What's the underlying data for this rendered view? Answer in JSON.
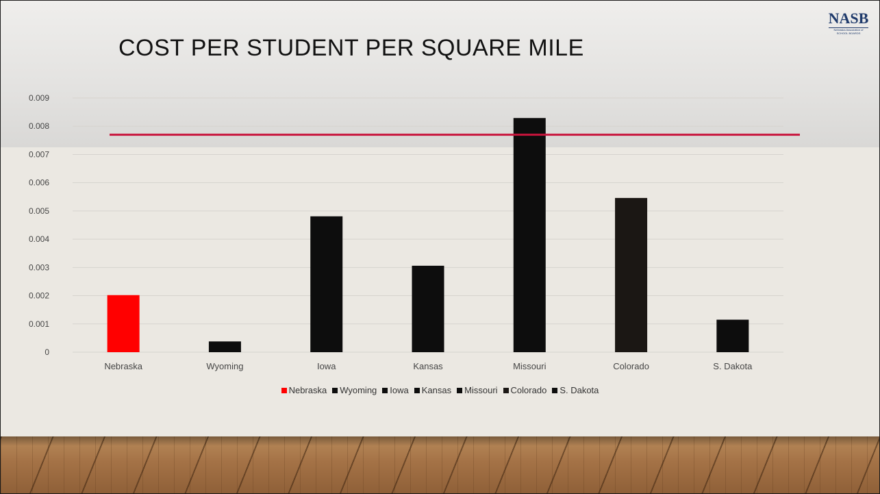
{
  "slide": {
    "title": "COST PER STUDENT PER SQUARE MILE",
    "logo": {
      "text": "NASB",
      "subtitle_line1": "Nebraska Association of",
      "subtitle_line2": "SCHOOL BOARDS"
    }
  },
  "colors": {
    "highlight": "#ff0000",
    "bar": "#0d0d0d",
    "colorado_bar": "#1b1714",
    "reference_line": "#c8143c",
    "logo": "#1f3a6b"
  },
  "chart_data": {
    "type": "bar",
    "categories": [
      "Nebraska",
      "Wyoming",
      "Iowa",
      "Kansas",
      "Missouri",
      "Colorado",
      "S. Dakota"
    ],
    "values": [
      0.00202,
      0.00038,
      0.00481,
      0.00306,
      0.00829,
      0.00546,
      0.00115
    ],
    "bar_colors": [
      "#ff0000",
      "#0d0d0d",
      "#0d0d0d",
      "#0d0d0d",
      "#0d0d0d",
      "#1b1714",
      "#0d0d0d"
    ],
    "ylim": [
      0,
      0.009
    ],
    "yticks": [
      0,
      0.001,
      0.002,
      0.003,
      0.004,
      0.005,
      0.006,
      0.007,
      0.008,
      0.009
    ],
    "ytick_labels": [
      "0",
      "0.001",
      "0.002",
      "0.003",
      "0.004",
      "0.005",
      "0.006",
      "0.007",
      "0.008",
      "0.009"
    ],
    "reference_line": 0.0077,
    "grid": true,
    "legend_position": "bottom",
    "legend": [
      "Nebraska",
      "Wyoming",
      "Iowa",
      "Kansas",
      "Missouri",
      "Colorado",
      "S. Dakota"
    ]
  }
}
